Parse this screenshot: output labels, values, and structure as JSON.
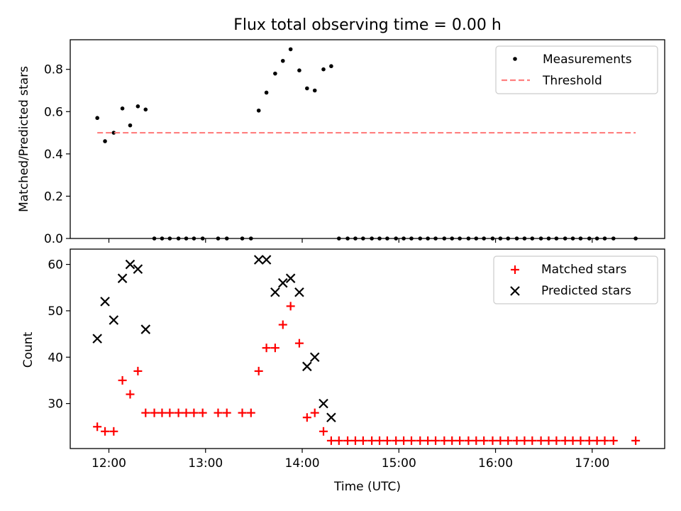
{
  "chart_data": [
    {
      "type": "scatter",
      "title": "Flux total observing time = 0.00 h",
      "xlabel": "",
      "ylabel": "Matched/Predicted stars",
      "xlim": [
        11.6,
        17.75
      ],
      "ylim": [
        0,
        0.94
      ],
      "yticks": [
        0.0,
        0.2,
        0.4,
        0.6,
        0.8
      ],
      "ytick_labels": [
        "0.0",
        "0.2",
        "0.4",
        "0.6",
        "0.8"
      ],
      "grid": false,
      "legend_position": "top-right",
      "series": [
        {
          "name": "Measurements",
          "kind": "scatter",
          "marker": "dot",
          "color": "#000000",
          "x": [
            11.88,
            11.96,
            12.05,
            12.14,
            12.22,
            12.3,
            12.38,
            12.47,
            12.55,
            12.63,
            12.72,
            12.8,
            12.88,
            12.97,
            13.13,
            13.22,
            13.38,
            13.47,
            13.55,
            13.63,
            13.72,
            13.8,
            13.88,
            13.97,
            14.05,
            14.13,
            14.22,
            14.3,
            14.38,
            14.47,
            14.55,
            14.63,
            14.72,
            14.8,
            14.88,
            14.97,
            15.05,
            15.13,
            15.22,
            15.3,
            15.38,
            15.47,
            15.55,
            15.63,
            15.72,
            15.8,
            15.88,
            15.97,
            16.05,
            16.13,
            16.22,
            16.3,
            16.38,
            16.47,
            16.55,
            16.63,
            16.72,
            16.8,
            16.88,
            16.97,
            17.05,
            17.13,
            17.22,
            17.45
          ],
          "y": [
            0.57,
            0.46,
            0.5,
            0.615,
            0.535,
            0.625,
            0.61,
            0,
            0,
            0,
            0,
            0,
            0,
            0,
            0,
            0,
            0,
            0,
            0.605,
            0.69,
            0.78,
            0.84,
            0.895,
            0.795,
            0.71,
            0.7,
            0.8,
            0.815,
            0,
            0,
            0,
            0,
            0,
            0,
            0,
            0,
            0,
            0,
            0,
            0,
            0,
            0,
            0,
            0,
            0,
            0,
            0,
            0,
            0,
            0,
            0,
            0,
            0,
            0,
            0,
            0,
            0,
            0,
            0,
            0,
            0,
            0,
            0,
            0
          ]
        },
        {
          "name": "Threshold",
          "kind": "line",
          "style": "dashed",
          "color": "#ff7f7f",
          "x": [
            11.88,
            17.45
          ],
          "y": [
            0.5,
            0.5
          ]
        }
      ]
    },
    {
      "type": "scatter",
      "title": "",
      "xlabel": "Time (UTC)",
      "ylabel": "Count",
      "xlim": [
        11.6,
        17.75
      ],
      "ylim": [
        20.3,
        63.3
      ],
      "yticks": [
        30,
        40,
        50,
        60
      ],
      "ytick_labels": [
        "30",
        "40",
        "50",
        "60"
      ],
      "xticks": [
        12,
        13,
        14,
        15,
        16,
        17
      ],
      "xtick_labels": [
        "12:00",
        "13:00",
        "14:00",
        "15:00",
        "16:00",
        "17:00"
      ],
      "grid": false,
      "legend_position": "top-right",
      "series": [
        {
          "name": "Matched stars",
          "kind": "scatter",
          "marker": "plus",
          "color": "#ff0000",
          "x": [
            11.88,
            11.96,
            12.05,
            12.14,
            12.22,
            12.3,
            12.38,
            12.47,
            12.55,
            12.63,
            12.72,
            12.8,
            12.88,
            12.97,
            13.13,
            13.22,
            13.38,
            13.47,
            13.55,
            13.63,
            13.72,
            13.8,
            13.88,
            13.97,
            14.05,
            14.13,
            14.22,
            14.3,
            14.38,
            14.47,
            14.55,
            14.63,
            14.72,
            14.8,
            14.88,
            14.97,
            15.05,
            15.13,
            15.22,
            15.3,
            15.38,
            15.47,
            15.55,
            15.63,
            15.72,
            15.8,
            15.88,
            15.97,
            16.05,
            16.13,
            16.22,
            16.3,
            16.38,
            16.47,
            16.55,
            16.63,
            16.72,
            16.8,
            16.88,
            16.97,
            17.05,
            17.13,
            17.22,
            17.45
          ],
          "y": [
            25,
            24,
            24,
            35,
            32,
            37,
            28,
            28,
            28,
            28,
            28,
            28,
            28,
            28,
            28,
            28,
            28,
            28,
            37,
            42,
            42,
            47,
            51,
            43,
            27,
            28,
            24,
            22,
            22,
            22,
            22,
            22,
            22,
            22,
            22,
            22,
            22,
            22,
            22,
            22,
            22,
            22,
            22,
            22,
            22,
            22,
            22,
            22,
            22,
            22,
            22,
            22,
            22,
            22,
            22,
            22,
            22,
            22,
            22,
            22,
            22,
            22,
            22,
            22
          ]
        },
        {
          "name": "Predicted stars",
          "kind": "scatter",
          "marker": "x",
          "color": "#000000",
          "x": [
            11.88,
            11.96,
            12.05,
            12.14,
            12.22,
            12.3,
            12.38,
            13.55,
            13.63,
            13.72,
            13.8,
            13.88,
            13.97,
            14.05,
            14.13,
            14.22,
            14.3
          ],
          "y": [
            44,
            52,
            48,
            57,
            60,
            59,
            46,
            61,
            61,
            54,
            56,
            57,
            54,
            38,
            40,
            30,
            27
          ]
        }
      ]
    }
  ]
}
